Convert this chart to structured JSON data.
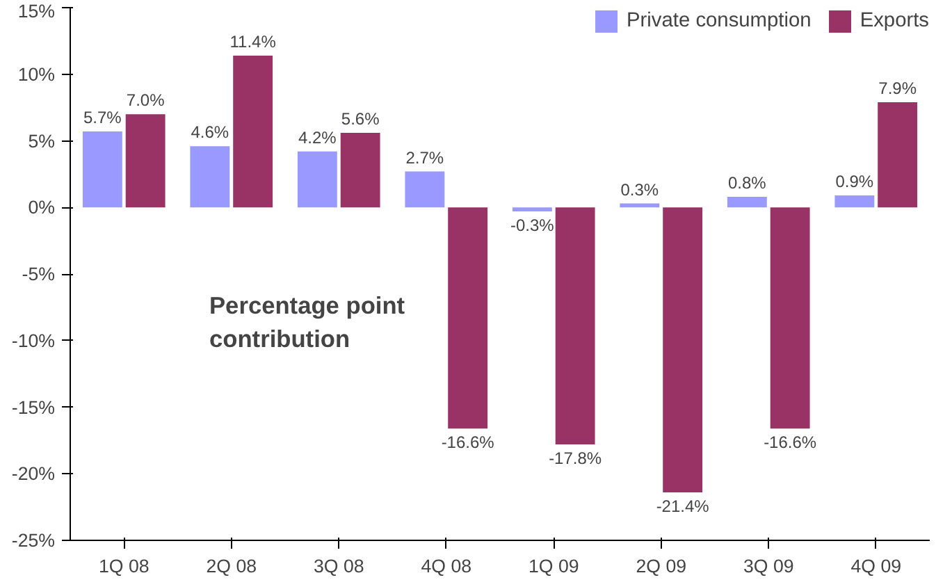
{
  "chart_data": {
    "type": "bar",
    "categories": [
      "1Q 08",
      "2Q 08",
      "3Q 08",
      "4Q 08",
      "1Q 09",
      "2Q 09",
      "3Q 09",
      "4Q 09"
    ],
    "series": [
      {
        "name": "Private consumption",
        "color": "#9999ff",
        "values": [
          5.7,
          4.6,
          4.2,
          2.7,
          -0.3,
          0.3,
          0.8,
          0.9
        ],
        "value_labels": [
          "5.7%",
          "4.6%",
          "4.2%",
          "2.7%",
          "-0.3%",
          "0.3%",
          "0.8%",
          "0.9%"
        ]
      },
      {
        "name": "Exports",
        "color": "#993366",
        "values": [
          7.0,
          11.4,
          5.6,
          -16.6,
          -17.8,
          -21.4,
          -16.6,
          7.9
        ],
        "value_labels": [
          "7.0%",
          "11.4%",
          "5.6%",
          "-16.6%",
          "-17.8%",
          "-21.4%",
          "-16.6%",
          "7.9%"
        ]
      }
    ],
    "ylim": [
      -25,
      15
    ],
    "yticks": [
      {
        "value": -25,
        "label": "-25%"
      },
      {
        "value": -20,
        "label": "-20%"
      },
      {
        "value": -15,
        "label": "-15%"
      },
      {
        "value": -10,
        "label": "-10%"
      },
      {
        "value": -5,
        "label": "-5%"
      },
      {
        "value": 0,
        "label": "0%"
      },
      {
        "value": 5,
        "label": "5%"
      },
      {
        "value": 10,
        "label": "10%"
      },
      {
        "value": 15,
        "label": "15%"
      }
    ],
    "annotations": [
      "Percentage point contribution"
    ],
    "grid": false,
    "legend": "top right"
  }
}
